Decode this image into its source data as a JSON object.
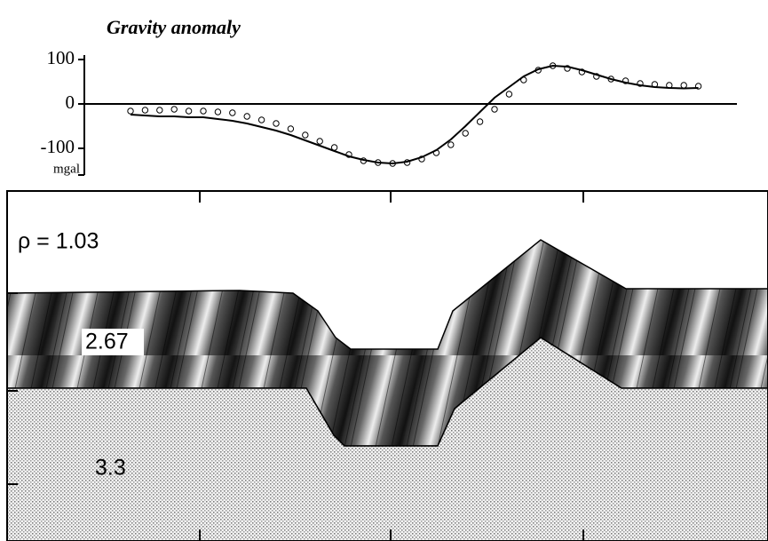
{
  "chart_data": {
    "type": "line",
    "title": "Gravity anomaly",
    "y_unit": "mgal",
    "categories": [
      null,
      null,
      null,
      null,
      null,
      null,
      null,
      null,
      null,
      null,
      null,
      null,
      null,
      null,
      null,
      null,
      null,
      null,
      null,
      null,
      null,
      null,
      null,
      null,
      null,
      null,
      null,
      null,
      null,
      null,
      null,
      null,
      null,
      null,
      null,
      null,
      null,
      null,
      null,
      null
    ],
    "series": [
      {
        "type": "scatter",
        "color": "#000000",
        "values": [
          -16,
          -14,
          -14,
          -12,
          -16,
          -16,
          -18,
          -20,
          -28,
          -36,
          -44,
          -56,
          -70,
          -84,
          -98,
          -114,
          -128,
          -132,
          -134,
          -132,
          -124,
          -110,
          -92,
          -66,
          -40,
          -12,
          22,
          54,
          76,
          86,
          80,
          72,
          62,
          56,
          52,
          46,
          44,
          42,
          42,
          40
        ]
      },
      {
        "type": "line",
        "color": "#000000",
        "values": [
          -24,
          -26,
          -28,
          -28,
          -30,
          -30,
          -34,
          -38,
          -44,
          -52,
          -60,
          -70,
          -82,
          -94,
          -106,
          -118,
          -126,
          -132,
          -134,
          -130,
          -120,
          -104,
          -80,
          -50,
          -18,
          14,
          38,
          62,
          78,
          86,
          84,
          76,
          66,
          56,
          48,
          42,
          38,
          36,
          35,
          36
        ]
      }
    ],
    "ylim": [
      -160,
      110
    ],
    "yticks": [
      100,
      0,
      -100
    ],
    "zero_line": true
  },
  "section": {
    "labels": [
      "ρ =  1.03",
      "2.67",
      "3.3"
    ]
  }
}
